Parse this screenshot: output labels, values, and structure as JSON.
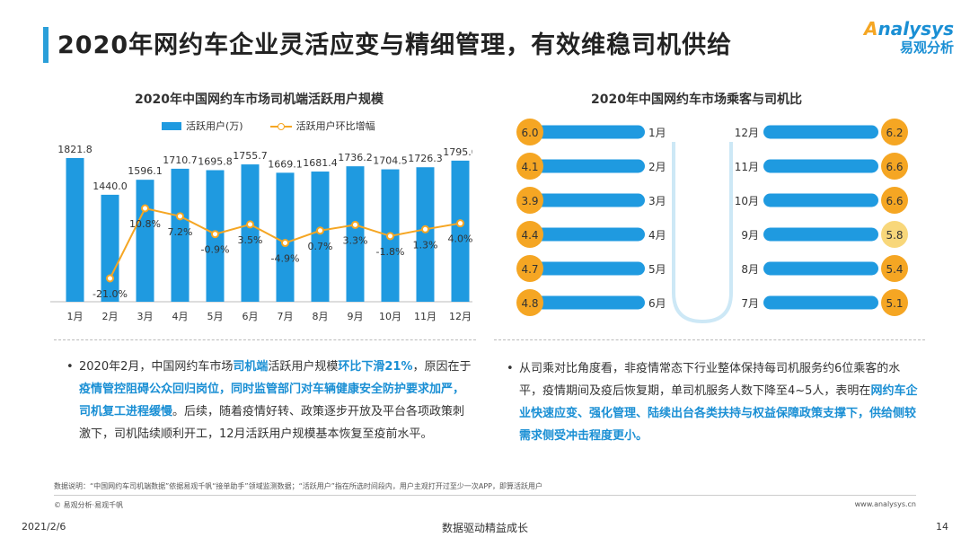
{
  "page": {
    "title": "2020年网约车企业灵活应变与精细管理，有效维稳司机供给",
    "logo_en_prefix": "",
    "logo_en": "nalysys",
    "logo_cn": "易观分析"
  },
  "left_panel": {
    "title": "2020年中国网约车市场司机端活跃用户规模",
    "legend_bar": "活跃用户(万)",
    "legend_line": "活跃用户环比增幅",
    "bullet": {
      "p1": "2020年2月，中国网约车市场",
      "h1": "司机端",
      "p2": "活跃用户规模",
      "h2": "环比下滑21%",
      "p3": "，原因在于",
      "h3": "疫情管控阻碍公众回归岗位，同时监管部门对车辆健康安全防护要求加严，司机复工进程缓慢",
      "p4": "。后续，随着疫情好转、政策逐步开放及平台各项政策刺激下，司机陆续顺利开工，12月活跃用户规模基本恢复至疫前水平。"
    }
  },
  "right_panel": {
    "title": "2020年中国网约车市场乘客与司机比",
    "bullet": {
      "p1": "从司乘对比角度看，非疫情常态下行业整体保持每司机服务约6位乘客的水平，疫情期间及疫后恢复期，单司机服务人数下降至4~5人，表明在",
      "h1": "网约车企业快速应变、强化管理、陆续出台各类扶持与权益保障政策支撑下，供给侧较需求侧受冲击程度更小。"
    }
  },
  "chart_data": [
    {
      "type": "bar",
      "title": "2020年中国网约车市场司机端活跃用户规模",
      "categories": [
        "1月",
        "2月",
        "3月",
        "4月",
        "5月",
        "6月",
        "7月",
        "8月",
        "9月",
        "10月",
        "11月",
        "12月"
      ],
      "series": [
        {
          "name": "活跃用户(万)",
          "type": "bar",
          "color": "#1f9ae0",
          "values": [
            1821.8,
            1440.0,
            1596.1,
            1710.7,
            1695.8,
            1755.7,
            1669.1,
            1681.4,
            1736.2,
            1704.5,
            1726.3,
            1795.0
          ],
          "labels": [
            "1821.8",
            "1440.0",
            "1596.1",
            "1710.7",
            "1695.8",
            "1755.7",
            "1669.1",
            "1681.4",
            "1736.2",
            "1704.5",
            "1726.3",
            "1795.0"
          ]
        },
        {
          "name": "活跃用户环比增幅",
          "type": "line",
          "color": "#f5a623",
          "values": [
            null,
            -21.0,
            10.8,
            7.2,
            -0.9,
            3.5,
            -4.9,
            0.7,
            3.3,
            -1.8,
            1.3,
            4.0
          ],
          "labels": [
            "",
            "-21.0%",
            "10.8%",
            "7.2%",
            "-0.9%",
            "3.5%",
            "-4.9%",
            "0.7%",
            "3.3%",
            "-1.8%",
            "1.3%",
            "4.0%"
          ]
        }
      ],
      "legend": "top-center"
    },
    {
      "type": "bar",
      "title": "2020年中国网约车市场乘客与司机比",
      "layout": "U-shaped horizontal bars",
      "categories": [
        "1月",
        "2月",
        "3月",
        "4月",
        "5月",
        "6月",
        "7月",
        "8月",
        "9月",
        "10月",
        "11月",
        "12月"
      ],
      "values": [
        6.0,
        4.1,
        3.9,
        4.4,
        4.7,
        4.8,
        5.1,
        5.4,
        5.8,
        6.6,
        6.6,
        6.2
      ],
      "labels": [
        "6.0",
        "4.1",
        "3.9",
        "4.4",
        "4.7",
        "4.8",
        "5.1",
        "5.4",
        "5.8",
        "6.6",
        "6.6",
        "6.2"
      ],
      "colors": {
        "bar": "#1f9ae0",
        "badge_high": "#f5a623",
        "badge_low": "#f8d77a"
      }
    }
  ],
  "footer": {
    "note": "数据说明：“中国网约车司机端数据”依据易观千帆“接单助手”领域监测数据；“活跃用户”指在所选时间段内，用户主观打开过至少一次APP，即算活跃用户",
    "copyright": "© 易观分析·易观千帆",
    "website": "www.analysys.cn",
    "date": "2021/2/6",
    "slogan": "数据驱动精益成长",
    "page": "14"
  }
}
